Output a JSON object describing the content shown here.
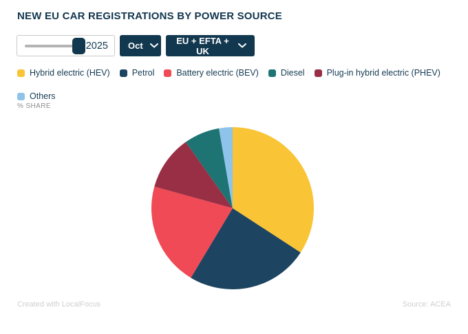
{
  "header": {
    "title": "NEW EU CAR REGISTRATIONS BY POWER SOURCE"
  },
  "controls": {
    "year_slider": {
      "value": "2025"
    },
    "month_select": {
      "value": "Oct"
    },
    "region_select": {
      "value": "EU + EFTA + UK"
    }
  },
  "legend": {
    "items": [
      {
        "label": "Hybrid electric (HEV)",
        "color": "#F9C435"
      },
      {
        "label": "Petrol",
        "color": "#1D4460"
      },
      {
        "label": "Battery electric (BEV)",
        "color": "#EF4A55"
      },
      {
        "label": "Diesel",
        "color": "#1E7473"
      },
      {
        "label": "Plug-in hybrid electric (PHEV)",
        "color": "#992F45"
      },
      {
        "label": "Others",
        "color": "#8FC3EA"
      }
    ]
  },
  "unit_label": "% SHARE",
  "chart_data": {
    "type": "pie",
    "title": "NEW EU CAR REGISTRATIONS BY POWER SOURCE",
    "unit": "% share",
    "start_angle_deg": 0,
    "direction": "clockwise",
    "legend_position": "top",
    "slices": [
      {
        "label": "Hybrid electric (HEV)",
        "value": 34.2,
        "color": "#F9C435"
      },
      {
        "label": "Petrol",
        "value": 24.4,
        "color": "#1D4460"
      },
      {
        "label": "Battery electric (BEV)",
        "value": 20.7,
        "color": "#EF4A55"
      },
      {
        "label": "Plug-in hybrid electric (PHEV)",
        "value": 10.9,
        "color": "#992F45"
      },
      {
        "label": "Diesel",
        "value": 7.1,
        "color": "#1E7473"
      },
      {
        "label": "Others",
        "value": 2.7,
        "color": "#8FC3EA"
      }
    ]
  },
  "footer": {
    "credit": "Created with LocalFocus",
    "source": "Source: ACEA"
  }
}
